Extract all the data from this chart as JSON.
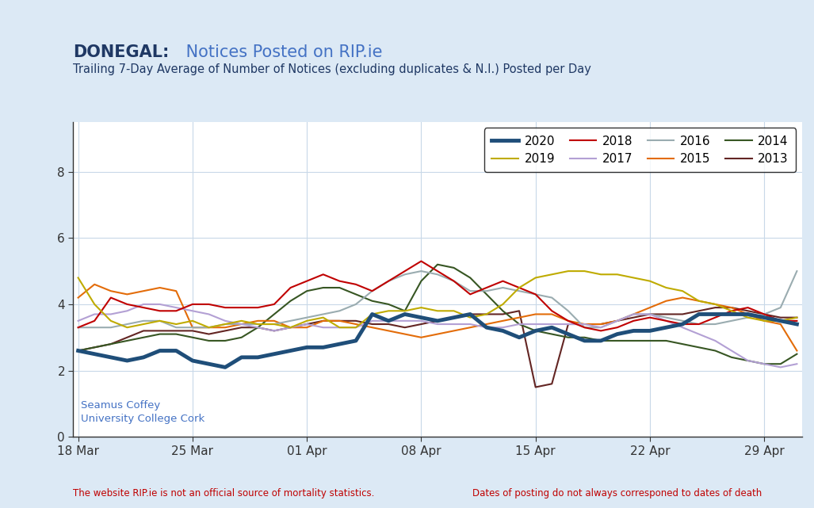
{
  "title_bold": "DONEGAL:",
  "title_rest": " Notices Posted on RIP.ie",
  "subtitle": "Trailing 7-Day Average of Number of Notices (excluding duplicates & N.I.) Posted per Day",
  "bg_color": "#dce9f5",
  "plot_bg_color": "#ffffff",
  "footer_left": "The website RIP.ie is not an official source of mortality statistics.",
  "footer_right": "Dates of posting do not always corresponed to dates of death",
  "author_text": "Seamus Coffey\nUniversity College Cork",
  "author_color": "#4472c4",
  "ylabel_vals": [
    0,
    2,
    4,
    6,
    8
  ],
  "ylim": [
    0,
    9.5
  ],
  "series": {
    "2020": {
      "color": "#1f4e79",
      "linewidth": 3.5,
      "values": [
        2.6,
        2.5,
        2.4,
        2.3,
        2.4,
        2.6,
        2.6,
        2.3,
        2.2,
        2.1,
        2.4,
        2.4,
        2.5,
        2.6,
        2.7,
        2.7,
        2.8,
        2.9,
        3.7,
        3.5,
        3.7,
        3.6,
        3.5,
        3.6,
        3.7,
        3.3,
        3.2,
        3.0,
        3.2,
        3.3,
        3.1,
        2.9,
        2.9,
        3.1,
        3.2,
        3.2,
        3.3,
        3.4,
        3.7,
        3.7,
        3.7,
        3.7,
        3.6,
        3.5,
        3.4
      ]
    },
    "2019": {
      "color": "#bfab00",
      "linewidth": 1.5,
      "values": [
        4.8,
        4.0,
        3.5,
        3.3,
        3.4,
        3.5,
        3.4,
        3.5,
        3.3,
        3.4,
        3.5,
        3.4,
        3.4,
        3.3,
        3.5,
        3.6,
        3.3,
        3.3,
        3.7,
        3.8,
        3.8,
        3.9,
        3.8,
        3.8,
        3.6,
        3.7,
        4.0,
        4.5,
        4.8,
        4.9,
        5.0,
        5.0,
        4.9,
        4.9,
        4.8,
        4.7,
        4.5,
        4.4,
        4.1,
        4.0,
        3.8,
        3.6,
        3.5,
        3.5,
        3.6
      ]
    },
    "2018": {
      "color": "#c00000",
      "linewidth": 1.5,
      "values": [
        3.3,
        3.5,
        4.2,
        4.0,
        3.9,
        3.8,
        3.8,
        4.0,
        4.0,
        3.9,
        3.9,
        3.9,
        4.0,
        4.5,
        4.7,
        4.9,
        4.7,
        4.6,
        4.4,
        4.7,
        5.0,
        5.3,
        5.0,
        4.7,
        4.3,
        4.5,
        4.7,
        4.5,
        4.3,
        3.8,
        3.5,
        3.3,
        3.2,
        3.3,
        3.5,
        3.6,
        3.5,
        3.4,
        3.4,
        3.6,
        3.8,
        3.9,
        3.7,
        3.5,
        3.5
      ]
    },
    "2017": {
      "color": "#b3a0d4",
      "linewidth": 1.5,
      "values": [
        3.5,
        3.7,
        3.7,
        3.8,
        4.0,
        4.0,
        3.9,
        3.8,
        3.7,
        3.5,
        3.4,
        3.3,
        3.2,
        3.3,
        3.4,
        3.3,
        3.3,
        3.3,
        3.5,
        3.5,
        3.5,
        3.5,
        3.4,
        3.4,
        3.4,
        3.3,
        3.3,
        3.4,
        3.4,
        3.4,
        3.4,
        3.4,
        3.3,
        3.5,
        3.7,
        3.7,
        3.5,
        3.3,
        3.1,
        2.9,
        2.6,
        2.3,
        2.2,
        2.1,
        2.2
      ]
    },
    "2016": {
      "color": "#9aacb0",
      "linewidth": 1.5,
      "values": [
        3.3,
        3.3,
        3.3,
        3.4,
        3.5,
        3.5,
        3.3,
        3.3,
        3.3,
        3.4,
        3.4,
        3.4,
        3.4,
        3.5,
        3.6,
        3.7,
        3.8,
        4.0,
        4.4,
        4.7,
        4.9,
        5.0,
        4.9,
        4.7,
        4.4,
        4.4,
        4.5,
        4.4,
        4.3,
        4.2,
        3.8,
        3.3,
        3.3,
        3.5,
        3.7,
        3.7,
        3.6,
        3.5,
        3.4,
        3.4,
        3.5,
        3.6,
        3.7,
        3.9,
        5.0
      ]
    },
    "2015": {
      "color": "#e36c09",
      "linewidth": 1.5,
      "values": [
        4.2,
        4.6,
        4.4,
        4.3,
        4.4,
        4.5,
        4.4,
        3.3,
        3.3,
        3.3,
        3.4,
        3.5,
        3.5,
        3.3,
        3.3,
        3.5,
        3.5,
        3.4,
        3.3,
        3.2,
        3.1,
        3.0,
        3.1,
        3.2,
        3.3,
        3.4,
        3.5,
        3.6,
        3.7,
        3.7,
        3.5,
        3.4,
        3.4,
        3.5,
        3.7,
        3.9,
        4.1,
        4.2,
        4.1,
        4.0,
        3.9,
        3.7,
        3.5,
        3.4,
        2.6
      ]
    },
    "2014": {
      "color": "#375623",
      "linewidth": 1.5,
      "values": [
        2.6,
        2.7,
        2.8,
        2.9,
        3.0,
        3.1,
        3.1,
        3.0,
        2.9,
        2.9,
        3.0,
        3.3,
        3.7,
        4.1,
        4.4,
        4.5,
        4.5,
        4.3,
        4.1,
        4.0,
        3.8,
        4.7,
        5.2,
        5.1,
        4.8,
        4.3,
        3.8,
        3.4,
        3.2,
        3.1,
        3.0,
        3.0,
        2.9,
        2.9,
        2.9,
        2.9,
        2.9,
        2.8,
        2.7,
        2.6,
        2.4,
        2.3,
        2.2,
        2.2,
        2.5
      ]
    },
    "2013": {
      "color": "#632523",
      "linewidth": 1.5,
      "values": [
        2.6,
        2.7,
        2.8,
        3.0,
        3.2,
        3.2,
        3.2,
        3.2,
        3.1,
        3.2,
        3.3,
        3.3,
        3.2,
        3.3,
        3.4,
        3.5,
        3.5,
        3.5,
        3.4,
        3.4,
        3.3,
        3.4,
        3.5,
        3.6,
        3.7,
        3.7,
        3.7,
        3.8,
        1.5,
        1.6,
        3.4,
        3.4,
        3.4,
        3.5,
        3.6,
        3.7,
        3.7,
        3.7,
        3.8,
        3.9,
        3.9,
        3.8,
        3.7,
        3.6,
        3.6
      ]
    }
  }
}
